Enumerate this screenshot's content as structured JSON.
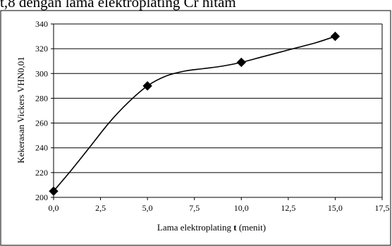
{
  "caption": "t,8 dengan lama elektroplating Cr hitam",
  "chart_data": {
    "type": "line",
    "title": "",
    "xlabel_prefix": "Lama elektroplating ",
    "xlabel_bold": "t",
    "xlabel_suffix": " (menit)",
    "ylabel": "Kekerasan Vickers VHN0,01",
    "xlim": [
      0,
      17.5
    ],
    "ylim": [
      200,
      340
    ],
    "xticks": [
      "0,0",
      "2,5",
      "5,0",
      "7,5",
      "10,0",
      "12,5",
      "15,0",
      "17,5"
    ],
    "xtick_values": [
      0,
      2.5,
      5,
      7.5,
      10,
      12.5,
      15,
      17.5
    ],
    "yticks": [
      "200",
      "220",
      "240",
      "260",
      "280",
      "300",
      "320",
      "340"
    ],
    "ytick_values": [
      200,
      220,
      240,
      260,
      280,
      300,
      320,
      340
    ],
    "grid": "horizontal",
    "marker": "diamond",
    "series": [
      {
        "x": [
          0,
          5,
          10,
          15
        ],
        "values": [
          205,
          290,
          309,
          330
        ]
      }
    ],
    "curve": {
      "x": [
        0,
        1,
        2,
        3,
        4,
        5,
        6,
        7,
        8,
        9,
        10,
        11,
        12,
        13,
        14,
        15
      ],
      "y": [
        205,
        223,
        242,
        261,
        277,
        290,
        298,
        302,
        304,
        306,
        309,
        313,
        317,
        321,
        325,
        330
      ]
    },
    "colors": {
      "line": "#000000",
      "marker": "#000000",
      "grid": "#000000"
    }
  }
}
